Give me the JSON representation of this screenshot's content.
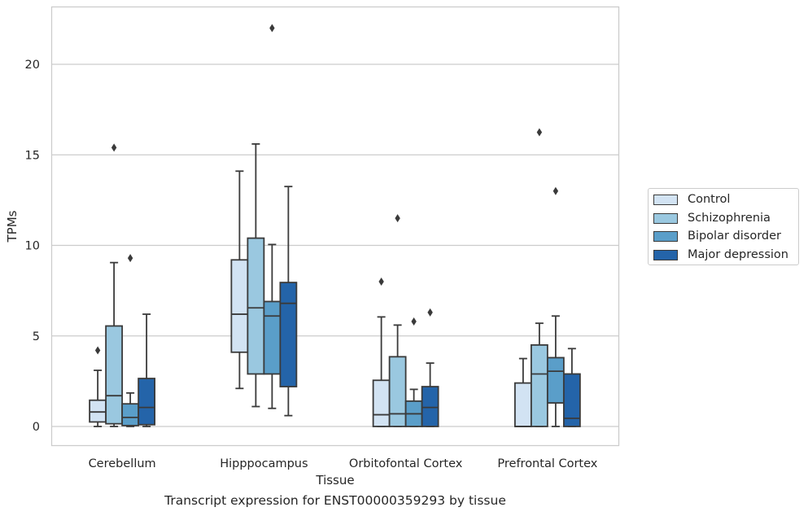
{
  "caption": "Transcript expression for ENST00000359293 by tissue",
  "chart_data": {
    "type": "boxplot",
    "xlabel": "Tissue",
    "ylabel": "TPMs",
    "ylim": [
      -1.1,
      23.2
    ],
    "yticks": [
      0,
      5,
      10,
      15,
      20
    ],
    "grid": "horizontal",
    "legend_position": "right",
    "categories": [
      "Cerebellum",
      "Hipppocampus",
      "Orbitofontal Cortex",
      "Prefrontal Cortex"
    ],
    "series": [
      {
        "name": "Control",
        "color": "#d2e3f3",
        "boxes": [
          {
            "whislo": 0.0,
            "q1": 0.25,
            "med": 0.8,
            "q3": 1.45,
            "whishi": 3.1,
            "fliers": [
              4.2
            ]
          },
          {
            "whislo": 2.1,
            "q1": 4.1,
            "med": 6.2,
            "q3": 9.2,
            "whishi": 14.1,
            "fliers": []
          },
          {
            "whislo": 0.0,
            "q1": 0.0,
            "med": 0.65,
            "q3": 2.55,
            "whishi": 6.05,
            "fliers": [
              8.0
            ]
          },
          {
            "whislo": 0.0,
            "q1": 0.0,
            "med": 0.0,
            "q3": 2.4,
            "whishi": 3.75,
            "fliers": []
          }
        ]
      },
      {
        "name": "Schizophrenia",
        "color": "#9ac8e0",
        "boxes": [
          {
            "whislo": 0.0,
            "q1": 0.15,
            "med": 1.7,
            "q3": 5.55,
            "whishi": 9.05,
            "fliers": [
              15.4
            ]
          },
          {
            "whislo": 1.1,
            "q1": 2.9,
            "med": 6.55,
            "q3": 10.4,
            "whishi": 15.6,
            "fliers": []
          },
          {
            "whislo": 0.0,
            "q1": 0.0,
            "med": 0.7,
            "q3": 3.85,
            "whishi": 5.6,
            "fliers": [
              11.5
            ]
          },
          {
            "whislo": 0.0,
            "q1": 0.0,
            "med": 2.9,
            "q3": 4.5,
            "whishi": 5.7,
            "fliers": [
              16.25
            ]
          }
        ]
      },
      {
        "name": "Bipolar disorder",
        "color": "#5a9ec9",
        "boxes": [
          {
            "whislo": 0.0,
            "q1": 0.05,
            "med": 0.5,
            "q3": 1.25,
            "whishi": 1.85,
            "fliers": [
              9.3
            ]
          },
          {
            "whislo": 1.0,
            "q1": 2.9,
            "med": 6.1,
            "q3": 6.9,
            "whishi": 10.05,
            "fliers": [
              22.0
            ]
          },
          {
            "whislo": 0.0,
            "q1": 0.0,
            "med": 0.7,
            "q3": 1.4,
            "whishi": 2.05,
            "fliers": [
              5.8
            ]
          },
          {
            "whislo": 0.0,
            "q1": 1.3,
            "med": 3.05,
            "q3": 3.8,
            "whishi": 6.1,
            "fliers": [
              13.0
            ]
          }
        ]
      },
      {
        "name": "Major depression",
        "color": "#2464a9",
        "boxes": [
          {
            "whislo": 0.0,
            "q1": 0.1,
            "med": 1.05,
            "q3": 2.65,
            "whishi": 6.2,
            "fliers": []
          },
          {
            "whislo": 0.6,
            "q1": 2.2,
            "med": 6.8,
            "q3": 7.95,
            "whishi": 13.25,
            "fliers": []
          },
          {
            "whislo": 0.0,
            "q1": 0.0,
            "med": 1.05,
            "q3": 2.2,
            "whishi": 3.5,
            "fliers": [
              6.3
            ]
          },
          {
            "whislo": 0.0,
            "q1": 0.0,
            "med": 0.45,
            "q3": 2.9,
            "whishi": 4.3,
            "fliers": []
          }
        ]
      }
    ]
  }
}
